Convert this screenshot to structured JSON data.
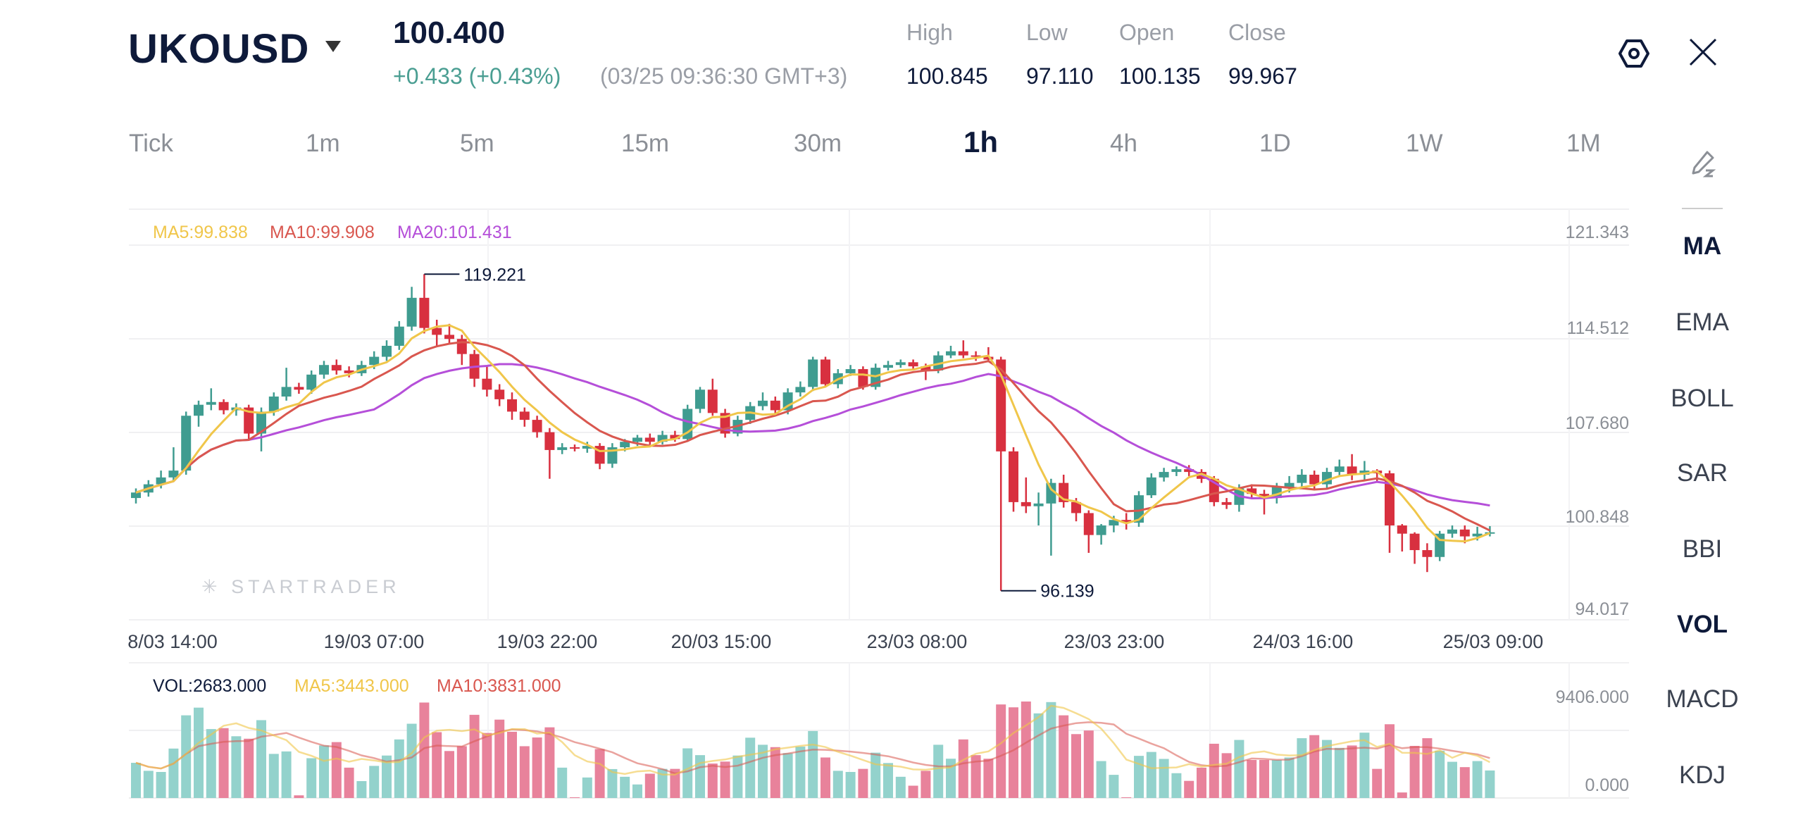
{
  "header": {
    "symbol": "UKOUSD",
    "price": "100.400",
    "change": "+0.433 (+0.43%)",
    "time": "(03/25 09:36:30 GMT+3)",
    "stats": [
      {
        "label": "High",
        "value": "100.845"
      },
      {
        "label": "Low",
        "value": "97.110"
      },
      {
        "label": "Open",
        "value": "100.135"
      },
      {
        "label": "Close",
        "value": "99.967"
      }
    ],
    "icons": {
      "settings": "hexagon-settings-icon",
      "close": "close-x-icon"
    }
  },
  "timeframes": [
    "Tick",
    "1m",
    "5m",
    "15m",
    "30m",
    "1h",
    "4h",
    "1D",
    "1W",
    "1M"
  ],
  "active_timeframe": "1h",
  "indicators": [
    "MA",
    "EMA",
    "BOLL",
    "SAR",
    "BBI",
    "VOL",
    "MACD",
    "KDJ"
  ],
  "active_indicators": [
    "MA",
    "VOL"
  ],
  "colors": {
    "up": "#3f9c90",
    "down": "#d8303f",
    "vol_up": "#93d2cc",
    "vol_down": "#e8829b",
    "ma5": "#f0c64a",
    "ma10": "#d9574f",
    "ma20": "#b54fd9"
  },
  "watermark": "STARTRADER",
  "chart_data": {
    "type": "candlestick",
    "legend": {
      "ma5": "MA5:99.838",
      "ma10": "MA10:99.908",
      "ma20": "MA20:101.431"
    },
    "volume_legend": {
      "vol": "VOL:2683.000",
      "ma5": "MA5:3443.000",
      "ma10": "MA10:3831.000"
    },
    "y_ticks": [
      "121.343",
      "114.512",
      "107.680",
      "100.848",
      "94.017"
    ],
    "ylim": [
      94.017,
      121.343
    ],
    "volume_ticks": [
      "9406.000",
      "0.000"
    ],
    "volume_max": 9406,
    "x_ticks": [
      "8/03 14:00",
      "19/03 07:00",
      "19/03 22:00",
      "20/03 15:00",
      "23/03 08:00",
      "23/03 23:00",
      "24/03 16:00",
      "25/03 09:00"
    ],
    "max_marker": "119.221",
    "min_marker": "96.139",
    "max_index": 23,
    "min_index": 69,
    "candles_fields": [
      "open",
      "high",
      "low",
      "close",
      "volume"
    ],
    "candles": [
      [
        102.9,
        103.6,
        102.5,
        103.3,
        3430
      ],
      [
        103.3,
        104.2,
        103.0,
        103.9,
        2650
      ],
      [
        103.9,
        104.9,
        103.6,
        104.4,
        2540
      ],
      [
        104.4,
        106.6,
        104.1,
        104.9,
        4820
      ],
      [
        104.9,
        109.2,
        104.6,
        108.9,
        8060
      ],
      [
        108.9,
        110.0,
        108.1,
        109.7,
        8810
      ],
      [
        109.7,
        110.9,
        109.3,
        109.9,
        6720
      ],
      [
        109.9,
        110.1,
        109.0,
        109.3,
        6810
      ],
      [
        109.3,
        109.8,
        108.9,
        109.5,
        6020
      ],
      [
        109.5,
        109.7,
        107.2,
        107.6,
        5780
      ],
      [
        107.6,
        109.5,
        106.3,
        109.2,
        7590
      ],
      [
        109.2,
        110.6,
        108.9,
        110.3,
        4300
      ],
      [
        110.3,
        112.4,
        110.0,
        111.0,
        4540
      ],
      [
        111.0,
        111.3,
        110.5,
        110.8,
        260
      ],
      [
        110.8,
        112.2,
        110.5,
        111.9,
        3880
      ],
      [
        111.9,
        112.9,
        111.6,
        112.6,
        5120
      ],
      [
        112.6,
        113.0,
        111.9,
        112.2,
        5450
      ],
      [
        112.2,
        112.5,
        111.7,
        112.0,
        2960
      ],
      [
        112.0,
        112.9,
        111.8,
        112.6,
        1650
      ],
      [
        112.6,
        113.6,
        112.3,
        113.2,
        3130
      ],
      [
        113.2,
        114.4,
        112.9,
        114.0,
        4140
      ],
      [
        114.0,
        115.8,
        113.7,
        115.4,
        5710
      ],
      [
        115.4,
        118.3,
        115.1,
        117.5,
        7240
      ],
      [
        117.5,
        119.221,
        114.9,
        115.3,
        9306
      ],
      [
        115.3,
        115.9,
        113.9,
        114.8,
        6420
      ],
      [
        114.8,
        115.6,
        114.1,
        114.5,
        4580
      ],
      [
        114.5,
        114.8,
        112.6,
        113.4,
        5050
      ],
      [
        113.4,
        113.7,
        111.0,
        111.6,
        8110
      ],
      [
        111.6,
        112.5,
        110.3,
        110.8,
        6340
      ],
      [
        110.8,
        111.2,
        109.6,
        110.1,
        7640
      ],
      [
        110.1,
        110.6,
        108.6,
        109.2,
        6460
      ],
      [
        109.2,
        109.5,
        108.1,
        108.6,
        5050
      ],
      [
        108.6,
        108.9,
        107.3,
        107.7,
        5900
      ],
      [
        107.7,
        108.0,
        104.3,
        106.4,
        6890
      ],
      [
        106.4,
        106.9,
        106.1,
        106.6,
        2960
      ],
      [
        106.6,
        106.8,
        106.3,
        106.5,
        70
      ],
      [
        106.5,
        107.0,
        106.2,
        106.7,
        2000
      ],
      [
        106.7,
        106.9,
        105.0,
        105.4,
        4770
      ],
      [
        105.4,
        106.9,
        105.1,
        106.6,
        2820
      ],
      [
        106.6,
        107.2,
        106.3,
        107.0,
        2070
      ],
      [
        107.0,
        107.5,
        106.7,
        107.3,
        1320
      ],
      [
        107.3,
        107.6,
        106.8,
        107.0,
        2370
      ],
      [
        107.0,
        107.8,
        106.8,
        107.5,
        2840
      ],
      [
        107.5,
        107.8,
        107.0,
        107.2,
        2840
      ],
      [
        107.2,
        109.7,
        107.0,
        109.4,
        4840
      ],
      [
        109.4,
        111.0,
        109.1,
        110.8,
        4180
      ],
      [
        110.8,
        111.6,
        108.9,
        109.1,
        3360
      ],
      [
        109.1,
        109.4,
        107.3,
        107.6,
        3550
      ],
      [
        107.6,
        108.9,
        107.4,
        108.6,
        4140
      ],
      [
        108.6,
        109.9,
        108.3,
        109.6,
        5880
      ],
      [
        109.6,
        110.6,
        109.3,
        110.0,
        5190
      ],
      [
        110.0,
        110.3,
        109.0,
        109.3,
        4960
      ],
      [
        109.3,
        110.9,
        109.0,
        110.6,
        4370
      ],
      [
        110.6,
        111.4,
        110.3,
        111.0,
        5010
      ],
      [
        111.0,
        113.2,
        110.7,
        113.0,
        6530
      ],
      [
        113.0,
        113.2,
        111.0,
        111.2,
        3950
      ],
      [
        111.2,
        112.3,
        110.9,
        112.0,
        2650
      ],
      [
        112.0,
        112.6,
        111.8,
        112.3,
        2540
      ],
      [
        112.3,
        112.5,
        110.8,
        111.0,
        2840
      ],
      [
        111.0,
        112.7,
        110.8,
        112.4,
        4420
      ],
      [
        112.4,
        112.9,
        112.2,
        112.6,
        3410
      ],
      [
        112.6,
        113.0,
        112.4,
        112.8,
        2070
      ],
      [
        112.8,
        113.0,
        112.3,
        112.5,
        1200
      ],
      [
        112.5,
        112.7,
        111.5,
        112.2,
        2650
      ],
      [
        112.2,
        113.6,
        112.0,
        113.3,
        5190
      ],
      [
        113.3,
        114.0,
        113.1,
        113.6,
        3830
      ],
      [
        113.6,
        114.4,
        113.1,
        113.3,
        5710
      ],
      [
        113.3,
        113.6,
        112.9,
        113.2,
        4180
      ],
      [
        113.2,
        113.9,
        112.8,
        113.0,
        3830
      ],
      [
        113.0,
        113.2,
        96.139,
        106.3,
        9120
      ],
      [
        106.3,
        106.6,
        101.9,
        102.6,
        8840
      ],
      [
        102.6,
        104.4,
        101.8,
        102.3,
        9406
      ],
      [
        102.3,
        103.3,
        100.9,
        102.5,
        8250
      ],
      [
        102.5,
        104.3,
        98.7,
        104.0,
        9350
      ],
      [
        104.0,
        104.6,
        102.2,
        102.6,
        8060
      ],
      [
        102.6,
        102.9,
        101.2,
        101.8,
        6230
      ],
      [
        101.8,
        102.0,
        98.9,
        100.2,
        6580
      ],
      [
        100.2,
        101.0,
        99.5,
        100.9,
        3600
      ],
      [
        100.9,
        101.6,
        100.4,
        101.3,
        2260
      ],
      [
        101.3,
        101.8,
        100.6,
        101.1,
        70
      ],
      [
        101.1,
        103.4,
        100.8,
        103.1,
        4110
      ],
      [
        103.1,
        104.7,
        102.9,
        104.4,
        4490
      ],
      [
        104.4,
        105.1,
        104.1,
        104.8,
        3810
      ],
      [
        104.8,
        105.2,
        104.5,
        105.0,
        2420
      ],
      [
        105.0,
        105.3,
        104.5,
        104.8,
        1670
      ],
      [
        104.8,
        105.0,
        104.0,
        104.3,
        2960
      ],
      [
        104.3,
        104.5,
        102.3,
        102.6,
        5290
      ],
      [
        102.6,
        102.9,
        102.1,
        102.4,
        4370
      ],
      [
        102.4,
        103.9,
        101.9,
        103.6,
        5660
      ],
      [
        103.6,
        103.9,
        102.9,
        103.2,
        3710
      ],
      [
        103.2,
        103.5,
        101.7,
        102.9,
        3710
      ],
      [
        102.9,
        104.0,
        102.5,
        103.7,
        3710
      ],
      [
        103.7,
        104.5,
        103.3,
        104.0,
        3950
      ],
      [
        104.0,
        105.0,
        103.7,
        104.6,
        5830
      ],
      [
        104.6,
        104.9,
        103.5,
        103.9,
        6130
      ],
      [
        103.9,
        105.1,
        103.6,
        104.8,
        5660
      ],
      [
        104.8,
        105.7,
        104.5,
        105.2,
        4890
      ],
      [
        105.2,
        106.1,
        104.2,
        104.6,
        5120
      ],
      [
        104.6,
        105.6,
        104.2,
        104.9,
        6370
      ],
      [
        104.9,
        105.0,
        104.1,
        104.7,
        2840
      ],
      [
        104.7,
        104.9,
        98.9,
        100.9,
        7190
      ],
      [
        100.9,
        101.0,
        99.0,
        100.3,
        540
      ],
      [
        100.3,
        100.4,
        98.1,
        99.1,
        5080
      ],
      [
        99.1,
        99.6,
        97.5,
        98.6,
        5830
      ],
      [
        98.6,
        100.5,
        98.3,
        100.3,
        4610
      ],
      [
        100.3,
        100.9,
        100.0,
        100.6,
        3530
      ],
      [
        100.6,
        100.9,
        99.6,
        100.1,
        3010
      ],
      [
        100.1,
        100.8,
        99.8,
        100.3,
        3600
      ],
      [
        100.3,
        100.85,
        100.1,
        100.4,
        2683
      ]
    ]
  }
}
